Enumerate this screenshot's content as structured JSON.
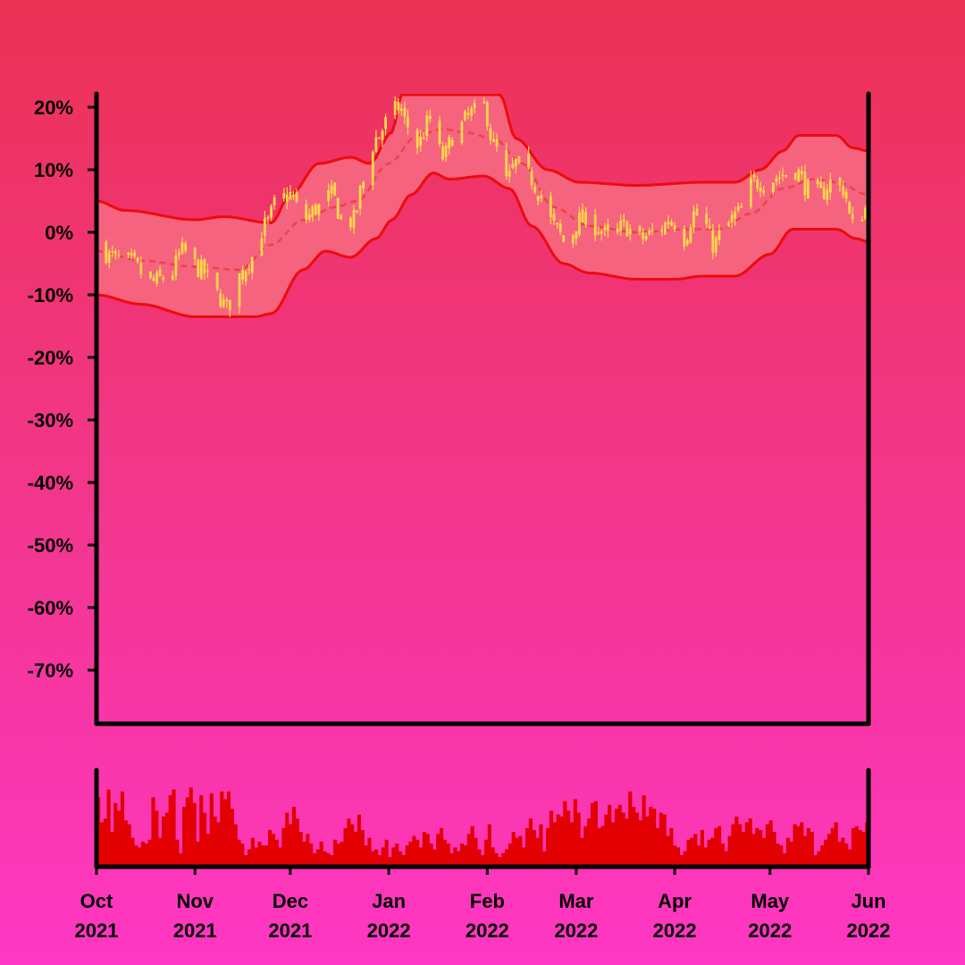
{
  "chart_data": [
    {
      "type": "candlestick",
      "panel": "price",
      "x_range": [
        "2021-10-01",
        "2022-06-01"
      ],
      "ylim": [
        -80,
        22
      ],
      "y_unit": "%",
      "y_ticks": [
        {
          "value": 20,
          "label": "20%"
        },
        {
          "value": 10,
          "label": "10%"
        },
        {
          "value": 0,
          "label": "0%"
        },
        {
          "value": -10,
          "label": "-10%"
        },
        {
          "value": -20,
          "label": "-20%"
        },
        {
          "value": -30,
          "label": "-30%"
        },
        {
          "value": -40,
          "label": "-40%"
        },
        {
          "value": -50,
          "label": "-50%"
        },
        {
          "value": -60,
          "label": "-60%"
        },
        {
          "value": -70,
          "label": "-70%"
        }
      ],
      "x_ticks": [
        {
          "date": "2021-10-01",
          "label1": "Oct",
          "label2": "2021"
        },
        {
          "date": "2021-11-01",
          "label1": "Nov",
          "label2": "2021"
        },
        {
          "date": "2021-12-01",
          "label1": "Dec",
          "label2": "2021"
        },
        {
          "date": "2022-01-01",
          "label1": "Jan",
          "label2": "2022"
        },
        {
          "date": "2022-02-01",
          "label1": "Feb",
          "label2": "2022"
        },
        {
          "date": "2022-03-01",
          "label1": "Mar",
          "label2": "2022"
        },
        {
          "date": "2022-04-01",
          "label1": "Apr",
          "label2": "2022"
        },
        {
          "date": "2022-05-01",
          "label1": "May",
          "label2": "2022"
        },
        {
          "date": "2022-06-01",
          "label1": "Jun",
          "label2": "2022"
        }
      ],
      "close_anchors": [
        [
          "2021-10-01",
          -2
        ],
        [
          "2021-10-06",
          -4
        ],
        [
          "2021-10-12",
          -5
        ],
        [
          "2021-10-18",
          -8
        ],
        [
          "2021-10-24",
          -7
        ],
        [
          "2021-10-28",
          -3
        ],
        [
          "2021-11-03",
          -6
        ],
        [
          "2021-11-08",
          -10
        ],
        [
          "2021-11-11",
          -12
        ],
        [
          "2021-11-15",
          -7
        ],
        [
          "2021-11-19",
          -4
        ],
        [
          "2021-11-23",
          1
        ],
        [
          "2021-11-27",
          5
        ],
        [
          "2021-12-01",
          6
        ],
        [
          "2021-12-05",
          2
        ],
        [
          "2021-12-10",
          4
        ],
        [
          "2021-12-14",
          6
        ],
        [
          "2021-12-18",
          1
        ],
        [
          "2021-12-21",
          2
        ],
        [
          "2021-12-24",
          8
        ],
        [
          "2021-12-28",
          15
        ],
        [
          "2022-01-01",
          18
        ],
        [
          "2022-01-04",
          20
        ],
        [
          "2022-01-07",
          17
        ],
        [
          "2022-01-10",
          14
        ],
        [
          "2022-01-14",
          18
        ],
        [
          "2022-01-18",
          12
        ],
        [
          "2022-01-22",
          16
        ],
        [
          "2022-01-27",
          19
        ],
        [
          "2022-01-31",
          20
        ],
        [
          "2022-02-03",
          14
        ],
        [
          "2022-02-07",
          8
        ],
        [
          "2022-02-10",
          11
        ],
        [
          "2022-02-14",
          9
        ],
        [
          "2022-02-18",
          6
        ],
        [
          "2022-02-22",
          1
        ],
        [
          "2022-02-26",
          -2
        ],
        [
          "2022-03-02",
          2
        ],
        [
          "2022-03-07",
          1
        ],
        [
          "2022-03-12",
          -1
        ],
        [
          "2022-03-16",
          1
        ],
        [
          "2022-03-21",
          -1
        ],
        [
          "2022-03-26",
          0
        ],
        [
          "2022-03-31",
          2
        ],
        [
          "2022-04-04",
          -1
        ],
        [
          "2022-04-07",
          3
        ],
        [
          "2022-04-10",
          2
        ],
        [
          "2022-04-13",
          -2
        ],
        [
          "2022-04-17",
          1
        ],
        [
          "2022-04-21",
          3
        ],
        [
          "2022-04-26",
          8
        ],
        [
          "2022-04-30",
          8
        ],
        [
          "2022-05-04",
          9
        ],
        [
          "2022-05-09",
          10
        ],
        [
          "2022-05-13",
          7
        ],
        [
          "2022-05-17",
          6
        ],
        [
          "2022-05-20",
          8
        ],
        [
          "2022-05-24",
          7
        ],
        [
          "2022-05-27",
          1
        ],
        [
          "2022-06-01",
          4
        ]
      ],
      "moving_average_anchors": [
        [
          "2021-10-01",
          -3
        ],
        [
          "2021-10-15",
          -4.5
        ],
        [
          "2021-11-01",
          -5.5
        ],
        [
          "2021-11-15",
          -6
        ],
        [
          "2021-11-25",
          -2
        ],
        [
          "2021-12-05",
          2
        ],
        [
          "2021-12-15",
          4
        ],
        [
          "2021-12-22",
          5
        ],
        [
          "2022-01-01",
          11
        ],
        [
          "2022-01-10",
          15.5
        ],
        [
          "2022-01-18",
          16.5
        ],
        [
          "2022-01-25",
          16
        ],
        [
          "2022-02-03",
          15
        ],
        [
          "2022-02-12",
          11
        ],
        [
          "2022-02-22",
          4
        ],
        [
          "2022-03-05",
          1
        ],
        [
          "2022-03-20",
          0
        ],
        [
          "2022-04-05",
          0.5
        ],
        [
          "2022-04-15",
          0.5
        ],
        [
          "2022-04-25",
          3
        ],
        [
          "2022-05-05",
          7
        ],
        [
          "2022-05-15",
          8.5
        ],
        [
          "2022-05-22",
          8
        ],
        [
          "2022-06-01",
          6
        ]
      ],
      "upper_band_anchors": [
        [
          "2021-10-01",
          5
        ],
        [
          "2021-10-10",
          3.5
        ],
        [
          "2021-11-01",
          2
        ],
        [
          "2021-11-10",
          2.5
        ],
        [
          "2021-11-25",
          1.5
        ],
        [
          "2021-12-01",
          6
        ],
        [
          "2021-12-10",
          11
        ],
        [
          "2021-12-20",
          12
        ],
        [
          "2021-12-26",
          11
        ],
        [
          "2022-01-02",
          16
        ],
        [
          "2022-01-05",
          22
        ],
        [
          "2022-01-31",
          22
        ],
        [
          "2022-02-05",
          22
        ],
        [
          "2022-02-10",
          15
        ],
        [
          "2022-02-20",
          10
        ],
        [
          "2022-03-02",
          8
        ],
        [
          "2022-03-20",
          7.5
        ],
        [
          "2022-04-10",
          8
        ],
        [
          "2022-04-20",
          8
        ],
        [
          "2022-04-28",
          10
        ],
        [
          "2022-05-05",
          13
        ],
        [
          "2022-05-10",
          15.5
        ],
        [
          "2022-05-22",
          15.5
        ],
        [
          "2022-05-27",
          13.5
        ],
        [
          "2022-06-01",
          13
        ]
      ],
      "lower_band_anchors": [
        [
          "2021-10-01",
          -10
        ],
        [
          "2021-10-15",
          -11.5
        ],
        [
          "2021-11-01",
          -13.5
        ],
        [
          "2021-11-20",
          -13.5
        ],
        [
          "2021-11-25",
          -13
        ],
        [
          "2021-12-05",
          -6
        ],
        [
          "2021-12-12",
          -3
        ],
        [
          "2021-12-20",
          -4
        ],
        [
          "2021-12-28",
          -1
        ],
        [
          "2022-01-02",
          2
        ],
        [
          "2022-01-08",
          6
        ],
        [
          "2022-01-15",
          9.5
        ],
        [
          "2022-01-20",
          8.5
        ],
        [
          "2022-01-31",
          9
        ],
        [
          "2022-02-08",
          7
        ],
        [
          "2022-02-15",
          1
        ],
        [
          "2022-02-25",
          -5
        ],
        [
          "2022-03-05",
          -6.5
        ],
        [
          "2022-03-20",
          -7.5
        ],
        [
          "2022-04-01",
          -7.5
        ],
        [
          "2022-04-10",
          -7
        ],
        [
          "2022-04-20",
          -7
        ],
        [
          "2022-05-01",
          -3.5
        ],
        [
          "2022-05-08",
          0.5
        ],
        [
          "2022-05-22",
          0.5
        ],
        [
          "2022-05-28",
          -1
        ],
        [
          "2022-06-01",
          -1.5
        ]
      ],
      "colors": {
        "candle": "#ffd84a",
        "band_fill": "#f5637f",
        "band_line": "#ee0b0b",
        "moving_average": "#ea3d3d",
        "axis": "#000000"
      }
    },
    {
      "type": "bar",
      "panel": "volume",
      "x_range": [
        "2021-10-01",
        "2022-06-01"
      ],
      "values": [
        72,
        46,
        50,
        80,
        36,
        66,
        58,
        78,
        48,
        44,
        30,
        22,
        20,
        26,
        24,
        28,
        72,
        58,
        30,
        52,
        56,
        74,
        80,
        28,
        14,
        62,
        72,
        82,
        66,
        26,
        74,
        56,
        34,
        76,
        52,
        46,
        78,
        70,
        78,
        60,
        44,
        28,
        24,
        12,
        18,
        30,
        20,
        26,
        22,
        22,
        38,
        34,
        28,
        20,
        40,
        56,
        44,
        62,
        50,
        36,
        26,
        34,
        24,
        14,
        18,
        26,
        16,
        14,
        12,
        28,
        24,
        26,
        40,
        50,
        44,
        36,
        54,
        38,
        22,
        30,
        16,
        18,
        12,
        20,
        28,
        10,
        20,
        24,
        16,
        12,
        22,
        26,
        32,
        28,
        20,
        36,
        34,
        24,
        18,
        34,
        40,
        28,
        24,
        14,
        20,
        16,
        24,
        22,
        34,
        42,
        30,
        18,
        12,
        28,
        44,
        20,
        14,
        10,
        14,
        18,
        24,
        36,
        30,
        32,
        20,
        40,
        50,
        38,
        30,
        44,
        16,
        40,
        58,
        46,
        54,
        52,
        68,
        58,
        46,
        70,
        56,
        30,
        42,
        50,
        66,
        68,
        40,
        42,
        54,
        64,
        46,
        60,
        64,
        56,
        50,
        78,
        62,
        56,
        48,
        74,
        52,
        62,
        60,
        40,
        56,
        54,
        32,
        40,
        22,
        20,
        12,
        16,
        28,
        30,
        34,
        22,
        38,
        20,
        28,
        30,
        40,
        42,
        24,
        16,
        32,
        44,
        52,
        44,
        36,
        46,
        50,
        34,
        40,
        38,
        30,
        44,
        48,
        36,
        24,
        22,
        14,
        30,
        26,
        44,
        42,
        46,
        32,
        40,
        36,
        12,
        16,
        22,
        28,
        34,
        40,
        46,
        26,
        30,
        24,
        18,
        40,
        42,
        38,
        36,
        46
      ],
      "ylim": [
        0,
        100
      ],
      "colors": {
        "bar": "#e20000"
      }
    }
  ]
}
